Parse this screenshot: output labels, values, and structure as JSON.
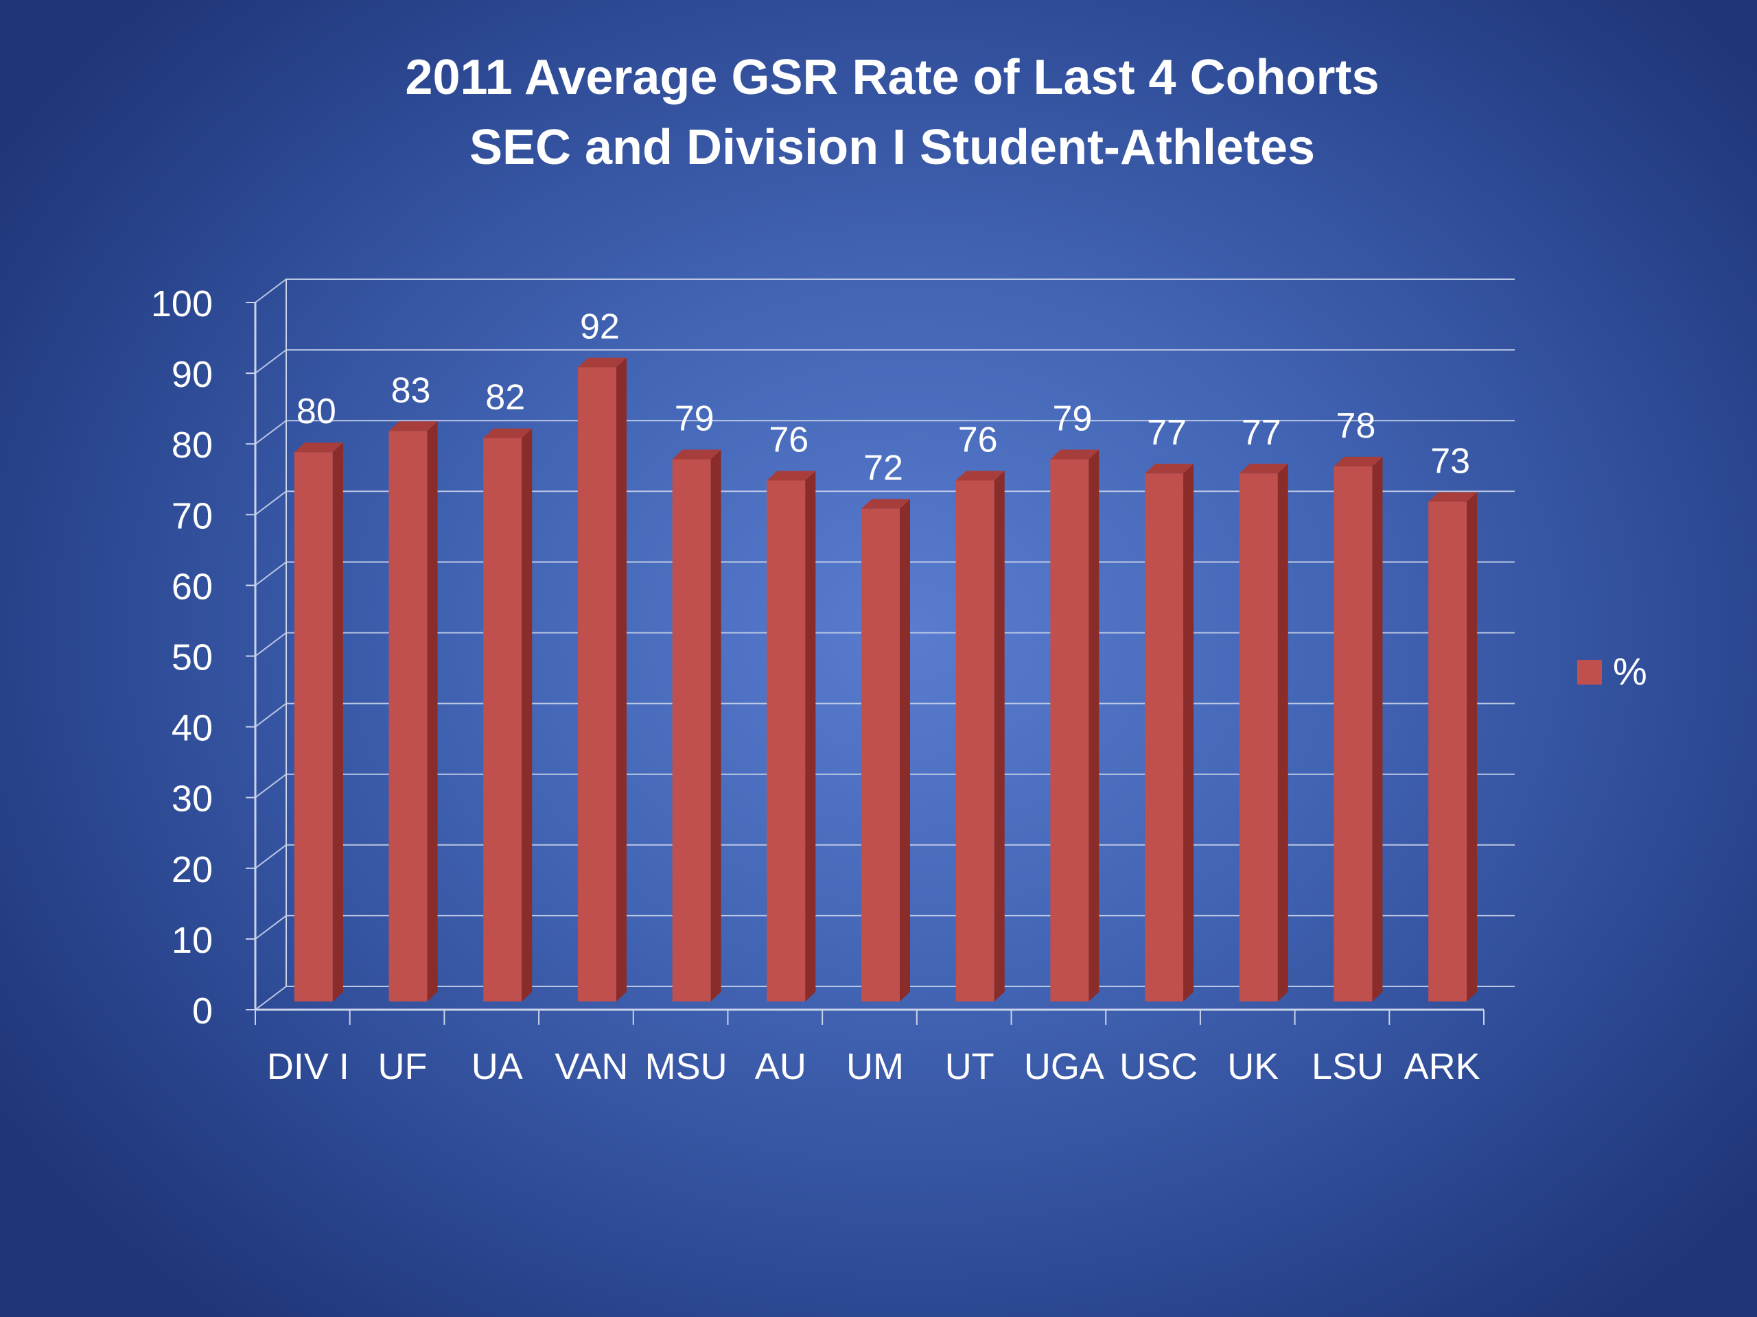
{
  "chart_data": {
    "type": "bar",
    "title": "2011 Average GSR Rate of Last 4 Cohorts",
    "subtitle": "SEC and Division I Student-Athletes",
    "categories": [
      "DIV I",
      "UF",
      "UA",
      "VAN",
      "MSU",
      "AU",
      "UM",
      "UT",
      "UGA",
      "USC",
      "UK",
      "LSU",
      "ARK"
    ],
    "series": [
      {
        "name": "%",
        "values": [
          80,
          83,
          82,
          92,
          79,
          76,
          72,
          76,
          79,
          77,
          77,
          78,
          73
        ]
      }
    ],
    "xlabel": "",
    "ylabel": "",
    "ylim": [
      0,
      100
    ],
    "yticks": [
      0,
      10,
      20,
      30,
      40,
      50,
      60,
      70,
      80,
      90,
      100
    ],
    "grid": true,
    "legend": {
      "position": "right",
      "entries": [
        "%"
      ]
    },
    "data_labels": true,
    "style": "3d-column"
  },
  "colors": {
    "bar_front": "#c0504d",
    "bar_side": "#8a2c2a",
    "bar_top": "#a83e3b",
    "grid": "#c9d3ea",
    "text": "#ffffff"
  }
}
